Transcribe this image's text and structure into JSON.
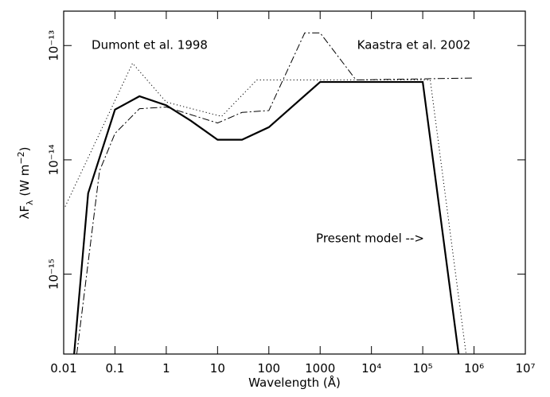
{
  "chart_data": {
    "type": "line",
    "x_label": "Wavelength (Å)",
    "y_label": [
      "λF",
      "λ",
      " (W m",
      "−2",
      ")"
    ],
    "log_x": true,
    "log_y": true,
    "xlim": [
      0.01,
      10000000
    ],
    "ylim": [
      2e-16,
      2e-13
    ],
    "xticks": [
      0.01,
      0.1,
      1,
      10,
      100,
      1000,
      {
        "value": 10000,
        "label": "10⁴"
      },
      {
        "value": 100000,
        "label": "10⁵"
      },
      {
        "value": 1000000,
        "label": "10⁶"
      },
      {
        "value": 10000000,
        "label": "10⁷"
      }
    ],
    "yticks": [
      {
        "value": 1e-15,
        "label": "10⁻¹⁵"
      },
      {
        "value": 1e-14,
        "label": "10⁻¹⁴"
      },
      {
        "value": 1e-13,
        "label": "10⁻¹³"
      }
    ],
    "annotations": [
      "Dumont et al. 1998",
      "Kaastra et al. 2002",
      "Present model -->"
    ],
    "series": [
      {
        "color": "#000000",
        "style": "solid",
        "x": [
          0.016,
          0.03,
          0.1,
          0.3,
          1,
          3,
          10,
          30,
          100,
          1000,
          100000,
          500000
        ],
        "values": [
          2e-16,
          5.1e-15,
          2.75e-14,
          3.6e-14,
          3e-14,
          2.2e-14,
          1.5e-14,
          1.5e-14,
          1.93e-14,
          4.8e-14,
          4.8e-14,
          2e-16
        ]
      },
      {
        "color": "#000000",
        "style": "dotted",
        "x": [
          0.0107,
          0.22,
          1,
          12,
          58,
          140000,
          700000
        ],
        "values": [
          3.9e-15,
          7e-14,
          3.2e-14,
          2.4e-14,
          5e-14,
          5e-14,
          2e-16
        ]
      },
      {
        "color": "#000000",
        "style": "dashdot",
        "x": [
          0.018,
          0.05,
          0.1,
          0.3,
          1,
          10,
          30,
          100,
          500,
          1000,
          5000,
          1000000
        ],
        "values": [
          2e-16,
          8e-15,
          1.7e-14,
          2.8e-14,
          2.9e-14,
          2.1e-14,
          2.6e-14,
          2.7e-14,
          1.29e-13,
          1.29e-13,
          5e-14,
          5.2e-14
        ]
      }
    ]
  }
}
